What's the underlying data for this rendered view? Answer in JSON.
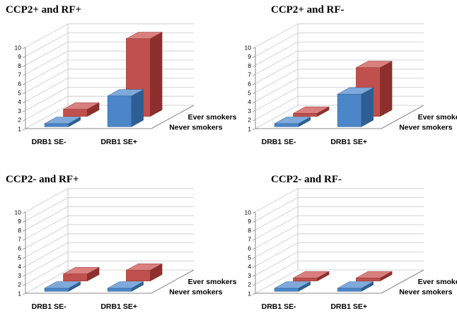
{
  "chart_data": [
    {
      "type": "bar",
      "title": "CCP2+ and RF+",
      "categories": [
        "DRB1 SE-",
        "DRB1 SE+"
      ],
      "series": [
        {
          "name": "Never smokers",
          "values": [
            1.0,
            4.4
          ]
        },
        {
          "name": "Ever smokers",
          "values": [
            1.8,
            9.6
          ]
        }
      ],
      "zlim": [
        1,
        10
      ],
      "ticks": [
        "1",
        "2",
        "3",
        "4",
        "5",
        "6",
        "7",
        "8",
        "9",
        "10"
      ],
      "grid": true
    },
    {
      "type": "bar",
      "title": "CCP2+ and RF-",
      "categories": [
        "DRB1 SE-",
        "DRB1 SE+"
      ],
      "series": [
        {
          "name": "Never smokers",
          "values": [
            1.0,
            4.6
          ]
        },
        {
          "name": "Ever smokers",
          "values": [
            1.2,
            6.4
          ]
        }
      ],
      "zlim": [
        1,
        10
      ],
      "ticks": [
        "1",
        "2",
        "3",
        "4",
        "5",
        "6",
        "7",
        "8",
        "9",
        "10"
      ],
      "grid": true
    },
    {
      "type": "bar",
      "title": "CCP2- and RF+",
      "categories": [
        "DRB1 SE-",
        "DRB1 SE+"
      ],
      "series": [
        {
          "name": "Never smokers",
          "values": [
            1.0,
            1.3
          ]
        },
        {
          "name": "Ever smokers",
          "values": [
            1.8,
            2.2
          ]
        }
      ],
      "zlim": [
        1,
        10
      ],
      "ticks": [
        "1",
        "2",
        "3",
        "4",
        "5",
        "6",
        "7",
        "8",
        "9",
        "10"
      ],
      "grid": true
    },
    {
      "type": "bar",
      "title": "CCP2- and RF-",
      "categories": [
        "DRB1 SE-",
        "DRB1 SE+"
      ],
      "series": [
        {
          "name": "Never smokers",
          "values": [
            1.0,
            1.0
          ]
        },
        {
          "name": "Ever smokers",
          "values": [
            1.0,
            1.2
          ]
        }
      ],
      "zlim": [
        1,
        10
      ],
      "ticks": [
        "1",
        "2",
        "3",
        "4",
        "5",
        "6",
        "7",
        "8",
        "9",
        "10"
      ],
      "grid": true
    }
  ],
  "colors": {
    "never_front": "#4a86c8",
    "never_side": "#2e5f94",
    "never_top": "#7ea9da",
    "ever_front": "#c0504d",
    "ever_side": "#8c2f2d",
    "ever_top": "#d9807e",
    "grid": "#c8c8c8",
    "axis": "#8a8a8a"
  }
}
